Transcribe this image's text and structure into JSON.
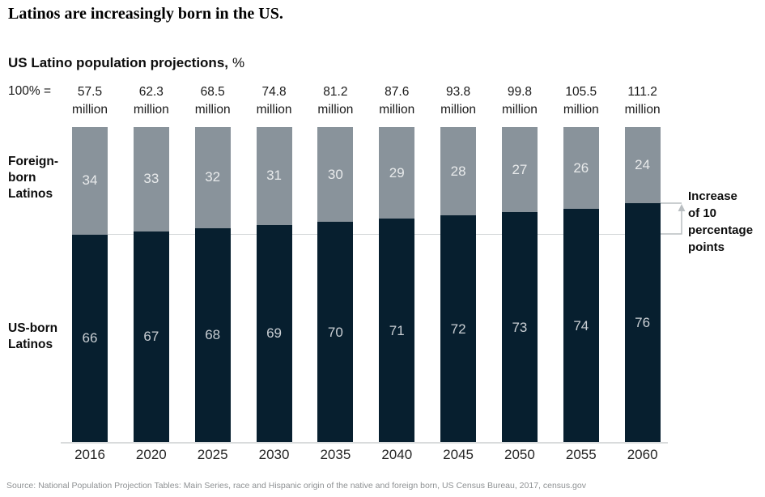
{
  "page": {
    "headline": "Latinos are increasingly born in the US.",
    "source": "Source: National Population Projection Tables: Main Series, race and Hispanic origin of the native and foreign born, US Census Bureau, 2017, census.gov"
  },
  "chart_data": {
    "type": "bar",
    "stacked": true,
    "title": "US Latino population projections,",
    "title_unit": "%",
    "total_label": "100% =",
    "totals_unit": "million",
    "categories": [
      "2016",
      "2020",
      "2025",
      "2030",
      "2035",
      "2040",
      "2045",
      "2050",
      "2055",
      "2060"
    ],
    "totals": [
      "57.5",
      "62.3",
      "68.5",
      "74.8",
      "81.2",
      "87.6",
      "93.8",
      "99.8",
      "105.5",
      "111.2"
    ],
    "series": [
      {
        "name": "US-born Latinos",
        "label_lines": [
          "US-born",
          "Latinos"
        ],
        "color": "#071f2f",
        "label_color": "#c9ced3",
        "values": [
          66,
          67,
          68,
          69,
          70,
          71,
          72,
          73,
          74,
          76
        ]
      },
      {
        "name": "Foreign-born Latinos",
        "label_lines": [
          "Foreign-",
          "born",
          "Latinos"
        ],
        "color": "#89939b",
        "label_color": "#e8eaeb",
        "values": [
          34,
          33,
          32,
          31,
          30,
          29,
          28,
          27,
          26,
          24
        ]
      }
    ],
    "annotation": {
      "lines": [
        "Increase",
        "of 10",
        "percentage",
        "points"
      ]
    },
    "reference_line_value": 66,
    "ylim": [
      0,
      100
    ],
    "grid": false,
    "legend_position": "left-row-labels",
    "bracket_color": "#b9bec1",
    "reference_line_color": "#d2d5d7"
  }
}
